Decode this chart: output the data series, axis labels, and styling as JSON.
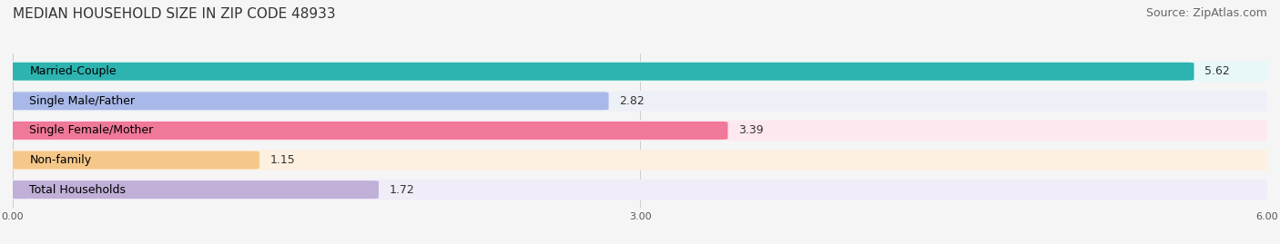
{
  "title": "MEDIAN HOUSEHOLD SIZE IN ZIP CODE 48933",
  "source": "Source: ZipAtlas.com",
  "categories": [
    "Married-Couple",
    "Single Male/Father",
    "Single Female/Mother",
    "Non-family",
    "Total Households"
  ],
  "values": [
    5.62,
    2.82,
    3.39,
    1.15,
    1.72
  ],
  "bar_colors": [
    "#2db3b0",
    "#a8b8e8",
    "#f07898",
    "#f5c88a",
    "#c0b0d8"
  ],
  "bar_bg_colors": [
    "#e8f8f8",
    "#eef0f8",
    "#fde8f0",
    "#fdf0e0",
    "#f0ecf8"
  ],
  "xlim": [
    0,
    6.0
  ],
  "xticks": [
    0.0,
    3.0,
    6.0
  ],
  "xticklabels": [
    "0.00",
    "3.00",
    "6.00"
  ],
  "background_color": "#f5f5f5",
  "bar_row_bg": "#ffffff",
  "title_fontsize": 11,
  "source_fontsize": 9,
  "label_fontsize": 9,
  "value_fontsize": 9
}
